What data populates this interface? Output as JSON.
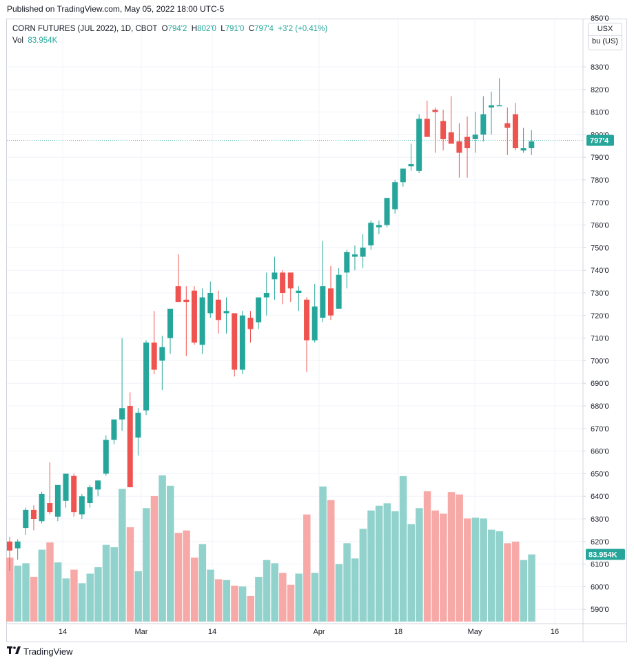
{
  "header": {
    "published": "Published on TradingView.com, May 05, 2022 18:00 UTC-5"
  },
  "legend": {
    "symbol": "CORN FUTURES (JUL 2022), 1D, CBOT",
    "open_label": "O",
    "open": "794'2",
    "high_label": "H",
    "high": "802'0",
    "low_label": "L",
    "low": "791'0",
    "close_label": "C",
    "close": "797'4",
    "change": "+3'2 (+0.41%)",
    "vol_label": "Vol",
    "vol": "83.954K"
  },
  "unit_box": {
    "currency": "USX",
    "unit": "bu (US)"
  },
  "price_tag": "797'4",
  "volume_tag": "83.954K",
  "footer": {
    "brand": "TradingView"
  },
  "colors": {
    "up": "#26a69a",
    "down": "#ef5350",
    "up_vol": "#92d2cc",
    "down_vol": "#f7a9a7",
    "grid": "#f0f3fa"
  },
  "chart_data": {
    "type": "candlestick",
    "price_axis": {
      "ylim": [
        585,
        850
      ],
      "ticks": [
        "590'0",
        "600'0",
        "610'0",
        "620'0",
        "630'0",
        "640'0",
        "650'0",
        "660'0",
        "670'0",
        "680'0",
        "690'0",
        "700'0",
        "710'0",
        "720'0",
        "730'0",
        "740'0",
        "750'0",
        "760'0",
        "770'0",
        "780'0",
        "790'0",
        "800'0",
        "810'0",
        "820'0",
        "830'0",
        "850'0"
      ]
    },
    "x_axis_labels": [
      "14",
      "Mar",
      "14",
      "Apr",
      "18",
      "May",
      "16"
    ],
    "last_price": 797.5,
    "candles": [
      {
        "o": 620,
        "h": 622,
        "l": 607,
        "c": 616,
        "v": 80
      },
      {
        "o": 617,
        "h": 621,
        "l": 612,
        "c": 620,
        "v": 70
      },
      {
        "o": 626,
        "h": 635,
        "l": 623,
        "c": 634,
        "v": 73
      },
      {
        "o": 634,
        "h": 636,
        "l": 625,
        "c": 630,
        "v": 56
      },
      {
        "o": 629,
        "h": 642,
        "l": 628,
        "c": 641,
        "v": 90
      },
      {
        "o": 637,
        "h": 655,
        "l": 632,
        "c": 633,
        "v": 99
      },
      {
        "o": 631,
        "h": 645,
        "l": 629,
        "c": 645,
        "v": 74
      },
      {
        "o": 638,
        "h": 650,
        "l": 635,
        "c": 650,
        "v": 54
      },
      {
        "o": 649,
        "h": 650,
        "l": 631,
        "c": 633,
        "v": 65
      },
      {
        "o": 632,
        "h": 641,
        "l": 630,
        "c": 640,
        "v": 48
      },
      {
        "o": 637,
        "h": 645,
        "l": 635,
        "c": 644,
        "v": 60
      },
      {
        "o": 643,
        "h": 647,
        "l": 640,
        "c": 647,
        "v": 68
      },
      {
        "o": 650,
        "h": 667,
        "l": 649,
        "c": 665,
        "v": 96
      },
      {
        "o": 665,
        "h": 674,
        "l": 663,
        "c": 674,
        "v": 93
      },
      {
        "o": 674,
        "h": 710,
        "l": 669,
        "c": 679,
        "v": 166
      },
      {
        "o": 680,
        "h": 686,
        "l": 644,
        "c": 644,
        "v": 118
      },
      {
        "o": 666,
        "h": 679,
        "l": 658,
        "c": 677,
        "v": 63
      },
      {
        "o": 678,
        "h": 709,
        "l": 676,
        "c": 708,
        "v": 142
      },
      {
        "o": 708,
        "h": 722,
        "l": 694,
        "c": 696,
        "v": 157
      },
      {
        "o": 700,
        "h": 711,
        "l": 687,
        "c": 706,
        "v": 183
      },
      {
        "o": 710,
        "h": 723,
        "l": 703,
        "c": 723,
        "v": 170
      },
      {
        "o": 733,
        "h": 747,
        "l": 726,
        "c": 726,
        "v": 111
      },
      {
        "o": 727,
        "h": 733,
        "l": 702,
        "c": 726,
        "v": 114
      },
      {
        "o": 731,
        "h": 733,
        "l": 707,
        "c": 708,
        "v": 80
      },
      {
        "o": 707,
        "h": 732,
        "l": 703,
        "c": 728,
        "v": 97
      },
      {
        "o": 721,
        "h": 735,
        "l": 719,
        "c": 730,
        "v": 65
      },
      {
        "o": 727,
        "h": 731,
        "l": 712,
        "c": 718,
        "v": 53
      },
      {
        "o": 721,
        "h": 728,
        "l": 712,
        "c": 722,
        "v": 52
      },
      {
        "o": 721,
        "h": 721,
        "l": 693,
        "c": 696,
        "v": 45
      },
      {
        "o": 696,
        "h": 722,
        "l": 694,
        "c": 720,
        "v": 44
      },
      {
        "o": 719,
        "h": 722,
        "l": 708,
        "c": 714,
        "v": 32
      },
      {
        "o": 717,
        "h": 727,
        "l": 714,
        "c": 728,
        "v": 56
      },
      {
        "o": 728,
        "h": 739,
        "l": 720,
        "c": 730,
        "v": 77
      },
      {
        "o": 736,
        "h": 746,
        "l": 727,
        "c": 739,
        "v": 73
      },
      {
        "o": 739,
        "h": 740,
        "l": 725,
        "c": 730,
        "v": 61
      },
      {
        "o": 739,
        "h": 737,
        "l": 726,
        "c": 732,
        "v": 46
      },
      {
        "o": 730,
        "h": 733,
        "l": 722,
        "c": 731,
        "v": 60
      },
      {
        "o": 727,
        "h": 728,
        "l": 695,
        "c": 709,
        "v": 134
      },
      {
        "o": 709,
        "h": 734,
        "l": 708,
        "c": 724,
        "v": 61
      },
      {
        "o": 719,
        "h": 753,
        "l": 717,
        "c": 733,
        "v": 169
      },
      {
        "o": 732,
        "h": 742,
        "l": 718,
        "c": 720,
        "v": 152
      },
      {
        "o": 723,
        "h": 741,
        "l": 723,
        "c": 738,
        "v": 72
      },
      {
        "o": 739,
        "h": 749,
        "l": 732,
        "c": 748,
        "v": 98
      },
      {
        "o": 746,
        "h": 751,
        "l": 740,
        "c": 747,
        "v": 79
      },
      {
        "o": 746,
        "h": 756,
        "l": 741,
        "c": 750,
        "v": 116
      },
      {
        "o": 751,
        "h": 762,
        "l": 749,
        "c": 761,
        "v": 139
      },
      {
        "o": 759,
        "h": 762,
        "l": 756,
        "c": 760,
        "v": 145
      },
      {
        "o": 760,
        "h": 772,
        "l": 759,
        "c": 772,
        "v": 148
      },
      {
        "o": 767,
        "h": 780,
        "l": 765,
        "c": 779,
        "v": 138
      },
      {
        "o": 779,
        "h": 784,
        "l": 777,
        "c": 785,
        "v": 182
      },
      {
        "o": 786,
        "h": 796,
        "l": 784,
        "c": 787,
        "v": 122
      },
      {
        "o": 784,
        "h": 809,
        "l": 783,
        "c": 807,
        "v": 142
      },
      {
        "o": 807,
        "h": 815,
        "l": 801,
        "c": 799,
        "v": 163
      },
      {
        "o": 811,
        "h": 812,
        "l": 792,
        "c": 810,
        "v": 139
      },
      {
        "o": 806,
        "h": 811,
        "l": 793,
        "c": 798,
        "v": 135
      },
      {
        "o": 801,
        "h": 817,
        "l": 797,
        "c": 796,
        "v": 162
      },
      {
        "o": 797,
        "h": 805,
        "l": 781,
        "c": 792,
        "v": 159
      },
      {
        "o": 799,
        "h": 808,
        "l": 781,
        "c": 794,
        "v": 129
      },
      {
        "o": 798,
        "h": 810,
        "l": 792,
        "c": 800,
        "v": 130
      },
      {
        "o": 800,
        "h": 817,
        "l": 797,
        "c": 809,
        "v": 129
      },
      {
        "o": 812,
        "h": 819,
        "l": 800,
        "c": 813,
        "v": 115
      },
      {
        "o": 813,
        "h": 825,
        "l": 813,
        "c": 813,
        "v": 113
      },
      {
        "o": 805,
        "h": 812,
        "l": 791,
        "c": 803,
        "v": 98
      },
      {
        "o": 809,
        "h": 814,
        "l": 793,
        "c": 794,
        "v": 100
      },
      {
        "o": 793,
        "h": 803,
        "l": 792,
        "c": 794,
        "v": 77
      },
      {
        "o": 794,
        "h": 802,
        "l": 791,
        "c": 797,
        "v": 84
      }
    ]
  }
}
